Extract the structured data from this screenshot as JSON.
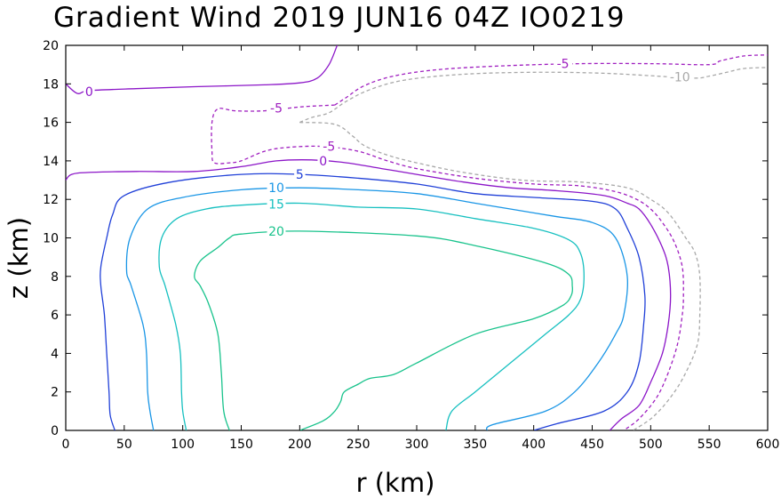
{
  "chart_data": {
    "type": "contour",
    "title": "Gradient Wind 2019 JUN16 04Z   IO0219",
    "xlabel": "r (km)",
    "ylabel": "z (km)",
    "xlim": [
      0,
      600
    ],
    "ylim": [
      0,
      20
    ],
    "xticks": [
      0,
      50,
      100,
      150,
      200,
      250,
      300,
      350,
      400,
      450,
      500,
      550,
      600
    ],
    "yticks": [
      0,
      2,
      4,
      6,
      8,
      10,
      12,
      14,
      16,
      18,
      20
    ],
    "grid": false,
    "colors": {
      "c20": "#19c38c",
      "c15": "#17c0c0",
      "c10": "#1a96e6",
      "c5": "#2040d8",
      "c0": "#8c16c8",
      "cm5": "#a020c0",
      "cm10": "#a8a8a8"
    },
    "contours": [
      {
        "level": "20",
        "color": "#19c38c",
        "dashed": false,
        "points": [
          [
            140,
            0
          ],
          [
            135,
            1
          ],
          [
            133,
            3
          ],
          [
            130,
            5
          ],
          [
            122,
            6.6
          ],
          [
            115,
            7.5
          ],
          [
            110,
            8
          ],
          [
            115,
            8.8
          ],
          [
            130,
            9.5
          ],
          [
            140,
            10
          ],
          [
            150,
            10.2
          ],
          [
            200,
            10.35
          ],
          [
            300,
            10.1
          ],
          [
            350,
            9.6
          ],
          [
            410,
            8.7
          ],
          [
            430,
            8.1
          ],
          [
            433,
            7.5
          ],
          [
            432,
            7
          ],
          [
            425,
            6.5
          ],
          [
            400,
            5.8
          ],
          [
            350,
            5
          ],
          [
            300,
            3.5
          ],
          [
            280,
            2.9
          ],
          [
            260,
            2.7
          ],
          [
            250,
            2.4
          ],
          [
            238,
            2
          ],
          [
            235,
            1.5
          ],
          [
            230,
            1
          ],
          [
            220,
            0.5
          ],
          [
            200,
            0
          ]
        ]
      },
      {
        "level": "15",
        "color": "#17c0c0",
        "dashed": false,
        "points": [
          [
            103,
            0
          ],
          [
            100,
            1
          ],
          [
            99,
            2
          ],
          [
            98,
            4
          ],
          [
            94,
            5.5
          ],
          [
            85,
            7.5
          ],
          [
            80,
            8.5
          ],
          [
            82,
            10
          ],
          [
            95,
            11
          ],
          [
            120,
            11.5
          ],
          [
            150,
            11.7
          ],
          [
            200,
            11.8
          ],
          [
            250,
            11.6
          ],
          [
            300,
            11.5
          ],
          [
            350,
            11
          ],
          [
            400,
            10.5
          ],
          [
            430,
            9.9
          ],
          [
            440,
            9.2
          ],
          [
            443,
            8
          ],
          [
            440,
            6.8
          ],
          [
            430,
            6
          ],
          [
            410,
            5
          ],
          [
            380,
            3.5
          ],
          [
            350,
            2
          ],
          [
            330,
            1
          ],
          [
            325,
            0
          ]
        ]
      },
      {
        "level": "10",
        "color": "#1a96e6",
        "dashed": false,
        "points": [
          [
            75,
            0
          ],
          [
            72,
            1
          ],
          [
            70,
            2
          ],
          [
            69,
            4
          ],
          [
            66,
            5.5
          ],
          [
            56,
            7.5
          ],
          [
            52,
            8.3
          ],
          [
            55,
            10
          ],
          [
            70,
            11.5
          ],
          [
            100,
            12.1
          ],
          [
            150,
            12.5
          ],
          [
            200,
            12.6
          ],
          [
            250,
            12.5
          ],
          [
            300,
            12.3
          ],
          [
            350,
            11.8
          ],
          [
            380,
            11.5
          ],
          [
            420,
            11.1
          ],
          [
            450,
            10.8
          ],
          [
            470,
            10
          ],
          [
            480,
            8
          ],
          [
            477,
            6
          ],
          [
            470,
            5
          ],
          [
            455,
            3.5
          ],
          [
            435,
            2
          ],
          [
            410,
            1
          ],
          [
            365,
            0.3
          ],
          [
            360,
            0
          ]
        ]
      },
      {
        "level": "5",
        "color": "#2040d8",
        "dashed": false,
        "points": [
          [
            42,
            0
          ],
          [
            38,
            0.8
          ],
          [
            37,
            2
          ],
          [
            35,
            4
          ],
          [
            33,
            6
          ],
          [
            30,
            7.5
          ],
          [
            30,
            8.5
          ],
          [
            35,
            10
          ],
          [
            40,
            11.2
          ],
          [
            50,
            12.2
          ],
          [
            90,
            12.9
          ],
          [
            150,
            13.3
          ],
          [
            200,
            13.3
          ],
          [
            250,
            13.1
          ],
          [
            300,
            12.8
          ],
          [
            350,
            12.3
          ],
          [
            400,
            12.1
          ],
          [
            450,
            11.9
          ],
          [
            470,
            11.5
          ],
          [
            480,
            10.5
          ],
          [
            490,
            9
          ],
          [
            495,
            7
          ],
          [
            494,
            5.5
          ],
          [
            490,
            3.5
          ],
          [
            480,
            2
          ],
          [
            460,
            1
          ],
          [
            420,
            0.35
          ],
          [
            400,
            0
          ]
        ]
      },
      {
        "level": "0",
        "color": "#8c16c8",
        "dashed": false,
        "points": [
          [
            0,
            13
          ],
          [
            5,
            13.3
          ],
          [
            20,
            13.4
          ],
          [
            60,
            13.45
          ],
          [
            110,
            13.45
          ],
          [
            150,
            13.7
          ],
          [
            180,
            14
          ],
          [
            210,
            14.05
          ],
          [
            240,
            13.9
          ],
          [
            270,
            13.6
          ],
          [
            300,
            13.3
          ],
          [
            340,
            12.9
          ],
          [
            380,
            12.6
          ],
          [
            420,
            12.45
          ],
          [
            460,
            12.2
          ],
          [
            480,
            11.8
          ],
          [
            490,
            11.5
          ],
          [
            500,
            10.7
          ],
          [
            510,
            9.5
          ],
          [
            515,
            8.5
          ],
          [
            517,
            7
          ],
          [
            515,
            5.5
          ],
          [
            510,
            4
          ],
          [
            500,
            2.5
          ],
          [
            490,
            1.3
          ],
          [
            475,
            0.6
          ],
          [
            465,
            0
          ]
        ]
      },
      {
        "level": "0",
        "color": "#8c16c8",
        "dashed": false,
        "points": [
          [
            0,
            18
          ],
          [
            10,
            17.5
          ],
          [
            20,
            17.65
          ],
          [
            60,
            17.75
          ],
          [
            110,
            17.85
          ],
          [
            170,
            17.95
          ],
          [
            200,
            18.05
          ],
          [
            215,
            18.3
          ],
          [
            225,
            19
          ],
          [
            232,
            20
          ]
        ]
      },
      {
        "level": "-5",
        "color": "#a020c0",
        "dashed": true,
        "points": [
          [
            230,
            16.9
          ],
          [
            240,
            17.3
          ],
          [
            255,
            17.9
          ],
          [
            280,
            18.4
          ],
          [
            320,
            18.75
          ],
          [
            380,
            18.95
          ],
          [
            440,
            19.05
          ],
          [
            500,
            19.05
          ],
          [
            550,
            19
          ],
          [
            560,
            19.2
          ],
          [
            580,
            19.45
          ],
          [
            600,
            19.5
          ]
        ]
      },
      {
        "level": "-5",
        "color": "#a020c0",
        "dashed": true,
        "points": [
          [
            230,
            16.9
          ],
          [
            200,
            16.8
          ],
          [
            170,
            16.6
          ],
          [
            145,
            16.6
          ],
          [
            130,
            16.7
          ],
          [
            125,
            16
          ],
          [
            125,
            14.5
          ],
          [
            127,
            13.9
          ],
          [
            140,
            13.9
          ],
          [
            150,
            14
          ],
          [
            170,
            14.5
          ],
          [
            190,
            14.7
          ],
          [
            220,
            14.75
          ],
          [
            250,
            14.5
          ],
          [
            275,
            14
          ],
          [
            300,
            13.6
          ],
          [
            350,
            13.1
          ],
          [
            400,
            12.8
          ],
          [
            440,
            12.7
          ],
          [
            470,
            12.4
          ],
          [
            488,
            12
          ],
          [
            500,
            11.5
          ],
          [
            510,
            10.8
          ],
          [
            520,
            9.8
          ],
          [
            527,
            8.5
          ],
          [
            528,
            7
          ],
          [
            527,
            6
          ],
          [
            523,
            4.5
          ],
          [
            515,
            3
          ],
          [
            505,
            1.7
          ],
          [
            490,
            0.6
          ],
          [
            477,
            0
          ]
        ]
      },
      {
        "level": "-10",
        "color": "#a8a8a8",
        "dashed": true,
        "points": [
          [
            200,
            16
          ],
          [
            210,
            16.25
          ],
          [
            225,
            16.5
          ],
          [
            240,
            17.1
          ],
          [
            260,
            17.7
          ],
          [
            290,
            18.2
          ],
          [
            340,
            18.5
          ],
          [
            400,
            18.6
          ],
          [
            460,
            18.55
          ],
          [
            520,
            18.35
          ],
          [
            540,
            18.3
          ],
          [
            550,
            18.4
          ],
          [
            565,
            18.6
          ],
          [
            580,
            18.8
          ],
          [
            600,
            18.85
          ]
        ]
      },
      {
        "level": "-10",
        "color": "#a8a8a8",
        "dashed": true,
        "points": [
          [
            200,
            16
          ],
          [
            230,
            15.9
          ],
          [
            245,
            15.3
          ],
          [
            255,
            14.8
          ],
          [
            275,
            14.3
          ],
          [
            300,
            13.9
          ],
          [
            340,
            13.4
          ],
          [
            390,
            13
          ],
          [
            440,
            12.9
          ],
          [
            480,
            12.6
          ],
          [
            500,
            12
          ],
          [
            515,
            11.3
          ],
          [
            530,
            10
          ],
          [
            538,
            9.2
          ],
          [
            542,
            8
          ],
          [
            542,
            6
          ],
          [
            540,
            4.5
          ],
          [
            530,
            3
          ],
          [
            518,
            1.8
          ],
          [
            502,
            0.7
          ],
          [
            485,
            0
          ]
        ]
      }
    ],
    "contour_labels": [
      {
        "text": "20",
        "x": 180,
        "y": 10.35,
        "color": "#19c38c"
      },
      {
        "text": "15",
        "x": 180,
        "y": 11.75,
        "color": "#17c0c0"
      },
      {
        "text": "10",
        "x": 180,
        "y": 12.6,
        "color": "#1a96e6"
      },
      {
        "text": "5",
        "x": 200,
        "y": 13.3,
        "color": "#2040d8"
      },
      {
        "text": "0",
        "x": 220,
        "y": 14.0,
        "color": "#8c16c8"
      },
      {
        "text": "0",
        "x": 20,
        "y": 17.6,
        "color": "#8c16c8"
      },
      {
        "text": "-5",
        "x": 180,
        "y": 16.75,
        "color": "#a020c0"
      },
      {
        "text": "-5",
        "x": 225,
        "y": 14.75,
        "color": "#a020c0"
      },
      {
        "text": "-5",
        "x": 425,
        "y": 19.05,
        "color": "#a020c0"
      },
      {
        "text": "-10",
        "x": 525,
        "y": 18.35,
        "color": "#a8a8a8"
      }
    ]
  }
}
